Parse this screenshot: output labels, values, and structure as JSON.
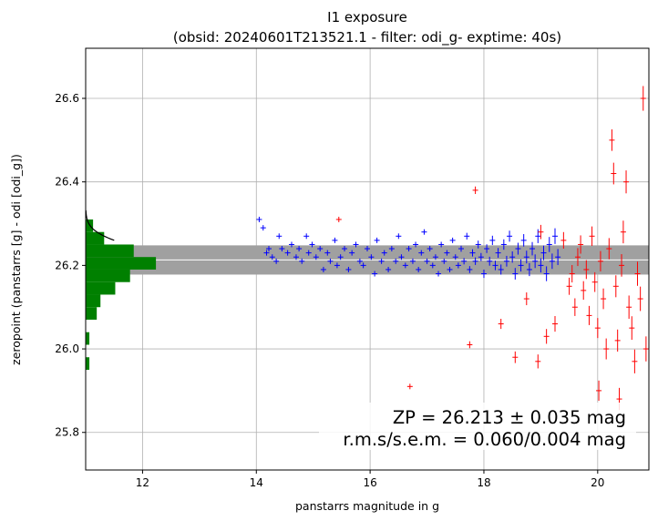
{
  "chart_data": {
    "type": "scatter",
    "title": "I1 exposure",
    "subtitle": "(obsid: 20240601T213521.1 - filter: odi_g- exptime: 40s)",
    "xlabel": "panstarrs magnitude in g",
    "ylabel": "zeropoint (panstarrs [g] - odi [odi_g])",
    "xlim": [
      11.0,
      20.9
    ],
    "ylim": [
      25.71,
      26.72
    ],
    "xticks": [
      12,
      14,
      16,
      18,
      20
    ],
    "yticks": [
      25.8,
      26.0,
      26.2,
      26.4,
      26.6
    ],
    "grid": true,
    "zeropoint": 26.213,
    "zp_error": 0.035,
    "annotations": [
      "ZP = 26.213 ± 0.035 mag",
      "r.m.s/s.e.m. = 0.060/0.004 mag"
    ],
    "colors": {
      "used": "#0000ff",
      "rejected": "#ff0000",
      "histogram": "#008000",
      "band": "#a0a0a0",
      "gaussian": "#000000"
    },
    "histogram": {
      "bin_edges": [
        25.95,
        25.98,
        26.01,
        26.04,
        26.07,
        26.1,
        26.13,
        26.16,
        26.19,
        26.22,
        26.25,
        26.28,
        26.31
      ],
      "counts": [
        1,
        0,
        1,
        0,
        3,
        4,
        8,
        12,
        19,
        13,
        5,
        2
      ],
      "count_scale": 0.065
    },
    "gaussian": {
      "mean": 26.213,
      "sigma": 0.035,
      "peak_counts": 19
    },
    "series": [
      {
        "name": "used",
        "points": [
          [
            14.05,
            26.31
          ],
          [
            14.12,
            26.29
          ],
          [
            14.18,
            26.23
          ],
          [
            14.22,
            26.24
          ],
          [
            14.28,
            26.22
          ],
          [
            14.35,
            26.21
          ],
          [
            14.4,
            26.27
          ],
          [
            14.45,
            26.24
          ],
          [
            14.55,
            26.23
          ],
          [
            14.62,
            26.25
          ],
          [
            14.7,
            26.22
          ],
          [
            14.75,
            26.24
          ],
          [
            14.8,
            26.21
          ],
          [
            14.88,
            26.27
          ],
          [
            14.92,
            26.23
          ],
          [
            14.98,
            26.25
          ],
          [
            15.05,
            26.22
          ],
          [
            15.12,
            26.24
          ],
          [
            15.18,
            26.19
          ],
          [
            15.25,
            26.23
          ],
          [
            15.3,
            26.21
          ],
          [
            15.38,
            26.26
          ],
          [
            15.42,
            26.2
          ],
          [
            15.48,
            26.22
          ],
          [
            15.55,
            26.24
          ],
          [
            15.62,
            26.19
          ],
          [
            15.68,
            26.23
          ],
          [
            15.75,
            26.25
          ],
          [
            15.82,
            26.21
          ],
          [
            15.88,
            26.2
          ],
          [
            15.95,
            26.24
          ],
          [
            16.02,
            26.22
          ],
          [
            16.08,
            26.18
          ],
          [
            16.12,
            26.26
          ],
          [
            16.2,
            26.21
          ],
          [
            16.25,
            26.23
          ],
          [
            16.32,
            26.19
          ],
          [
            16.38,
            26.24
          ],
          [
            16.45,
            26.21
          ],
          [
            16.5,
            26.27
          ],
          [
            16.55,
            26.22
          ],
          [
            16.62,
            26.2
          ],
          [
            16.68,
            26.24
          ],
          [
            16.75,
            26.21
          ],
          [
            16.8,
            26.25
          ],
          [
            16.85,
            26.19
          ],
          [
            16.9,
            26.23
          ],
          [
            16.95,
            26.28
          ],
          [
            17.0,
            26.21
          ],
          [
            17.05,
            26.24
          ],
          [
            17.1,
            26.2
          ],
          [
            17.15,
            26.22
          ],
          [
            17.2,
            26.18
          ],
          [
            17.25,
            26.25
          ],
          [
            17.3,
            26.21
          ],
          [
            17.35,
            26.23
          ],
          [
            17.4,
            26.19
          ],
          [
            17.45,
            26.26
          ],
          [
            17.5,
            26.22
          ],
          [
            17.55,
            26.2
          ],
          [
            17.6,
            26.24
          ],
          [
            17.65,
            26.21
          ],
          [
            17.7,
            26.27
          ],
          [
            17.75,
            26.19
          ],
          [
            17.8,
            26.23
          ],
          [
            17.85,
            26.21
          ],
          [
            17.9,
            26.25
          ],
          [
            17.95,
            26.22
          ],
          [
            18.0,
            26.18
          ],
          [
            18.05,
            26.24
          ],
          [
            18.1,
            26.21
          ],
          [
            18.15,
            26.26
          ],
          [
            18.2,
            26.2
          ],
          [
            18.25,
            26.23
          ],
          [
            18.3,
            26.19
          ],
          [
            18.35,
            26.25
          ],
          [
            18.4,
            26.21
          ],
          [
            18.45,
            26.27
          ],
          [
            18.5,
            26.22
          ],
          [
            18.55,
            26.18
          ],
          [
            18.6,
            26.24
          ],
          [
            18.65,
            26.2
          ],
          [
            18.7,
            26.26
          ],
          [
            18.75,
            26.22
          ],
          [
            18.8,
            26.19
          ],
          [
            18.85,
            26.24
          ],
          [
            18.9,
            26.21
          ],
          [
            18.95,
            26.27
          ],
          [
            19.0,
            26.2
          ],
          [
            19.05,
            26.23
          ],
          [
            19.1,
            26.18
          ],
          [
            19.15,
            26.25
          ],
          [
            19.2,
            26.21
          ],
          [
            19.25,
            26.27
          ],
          [
            19.3,
            26.22
          ]
        ]
      },
      {
        "name": "rejected",
        "points": [
          [
            15.45,
            26.31
          ],
          [
            16.7,
            25.91
          ],
          [
            17.75,
            26.01
          ],
          [
            17.85,
            26.38
          ],
          [
            18.3,
            26.06
          ],
          [
            18.55,
            25.98
          ],
          [
            18.75,
            26.12
          ],
          [
            18.95,
            25.97
          ],
          [
            19.0,
            26.28
          ],
          [
            19.1,
            26.03
          ],
          [
            19.25,
            26.06
          ],
          [
            19.4,
            26.26
          ],
          [
            19.5,
            26.15
          ],
          [
            19.55,
            26.18
          ],
          [
            19.6,
            26.1
          ],
          [
            19.65,
            26.22
          ],
          [
            19.7,
            26.25
          ],
          [
            19.75,
            26.14
          ],
          [
            19.8,
            26.19
          ],
          [
            19.85,
            26.08
          ],
          [
            19.9,
            26.27
          ],
          [
            19.95,
            26.16
          ],
          [
            20.0,
            26.05
          ],
          [
            20.02,
            25.9
          ],
          [
            20.05,
            26.21
          ],
          [
            20.1,
            26.12
          ],
          [
            20.15,
            26.0
          ],
          [
            20.2,
            26.24
          ],
          [
            20.25,
            26.5
          ],
          [
            20.28,
            26.42
          ],
          [
            20.32,
            26.15
          ],
          [
            20.35,
            26.02
          ],
          [
            20.38,
            25.88
          ],
          [
            20.42,
            26.2
          ],
          [
            20.45,
            26.28
          ],
          [
            20.5,
            26.4
          ],
          [
            20.55,
            26.1
          ],
          [
            20.6,
            26.05
          ],
          [
            20.65,
            25.97
          ],
          [
            20.7,
            26.18
          ],
          [
            20.75,
            26.12
          ],
          [
            20.8,
            26.6
          ],
          [
            20.85,
            26.0
          ]
        ]
      }
    ]
  }
}
